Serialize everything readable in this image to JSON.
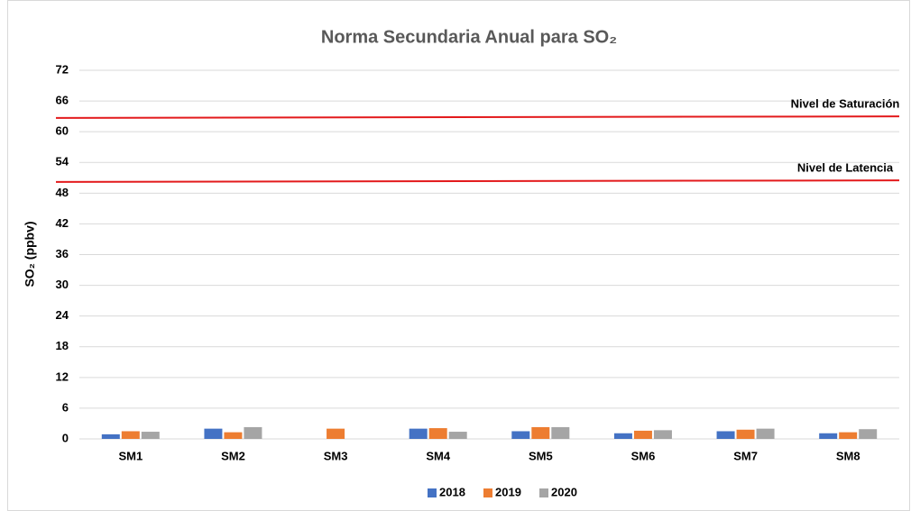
{
  "chart_data": {
    "type": "bar",
    "title": "Norma Secundaria Anual para SO₂",
    "y_label": "SO₂ (ppbv)",
    "categories": [
      "SM1",
      "SM2",
      "SM3",
      "SM4",
      "SM5",
      "SM6",
      "SM7",
      "SM8"
    ],
    "series": [
      {
        "name": "2018",
        "color": "#4472c4",
        "values": [
          0.9,
          2.0,
          null,
          2.0,
          1.5,
          1.1,
          1.5,
          1.1
        ]
      },
      {
        "name": "2019",
        "color": "#ed7d31",
        "values": [
          1.5,
          1.3,
          2.0,
          2.1,
          2.3,
          1.6,
          1.8,
          1.3
        ]
      },
      {
        "name": "2020",
        "color": "#a5a5a5",
        "values": [
          1.4,
          2.3,
          null,
          1.4,
          2.3,
          1.7,
          2.0,
          1.9
        ]
      }
    ],
    "reference_lines": [
      {
        "label": "Nivel de Saturación",
        "color": "#e31a1c",
        "values": [
          62.7,
          63.0
        ]
      },
      {
        "label": "Nivel de Latencia",
        "color": "#e31a1c",
        "values": [
          50.2,
          50.5
        ]
      }
    ],
    "ylim": [
      0,
      72
    ],
    "yticks": [
      0,
      6,
      12,
      18,
      24,
      30,
      36,
      42,
      48,
      54,
      60,
      66,
      72
    ],
    "grid": true,
    "legend": "bottom"
  }
}
